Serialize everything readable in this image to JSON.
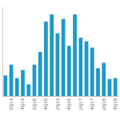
{
  "chart_data": {
    "type": "bar",
    "categories": [
      null,
      "2Q14",
      null,
      "4Q14",
      null,
      "2Q15",
      null,
      "4Q15",
      null,
      "2Q16",
      null,
      "4Q16",
      null,
      "2Q17",
      null,
      "4Q17",
      null,
      "2Q18",
      null,
      "4Q18"
    ],
    "values": [
      23,
      35,
      20,
      29,
      13,
      35,
      49,
      83,
      91,
      70,
      86,
      56,
      91,
      65,
      61,
      54,
      31,
      37,
      19,
      20
    ],
    "color": "#1b9ac6",
    "ylim": [
      0,
      100
    ],
    "grid": false,
    "tick_labels": "x"
  }
}
